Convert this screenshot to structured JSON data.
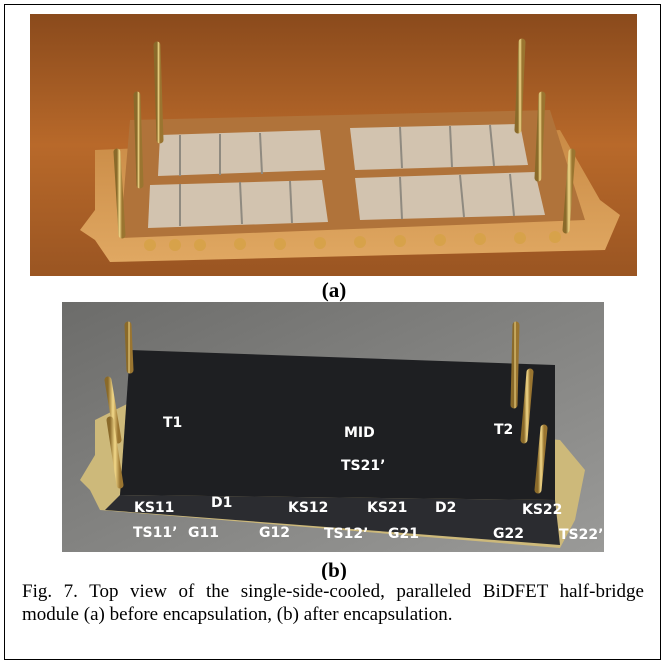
{
  "figure": {
    "panels": [
      {
        "label": "(a)"
      },
      {
        "label": "(b)",
        "annotations": [
          "T1",
          "MID",
          "T2",
          "TS21’",
          "KS11",
          "D1",
          "KS12",
          "KS21",
          "D2",
          "KS22",
          "TS11’",
          "G11",
          "G12",
          "TS12’",
          "G21",
          "G22",
          "TS22’"
        ]
      }
    ],
    "caption": "Fig. 7. Top view of the single-side-cooled, paralleled BiDFET half-bridge module (a) before encapsulation, (b) after encapsulation."
  }
}
